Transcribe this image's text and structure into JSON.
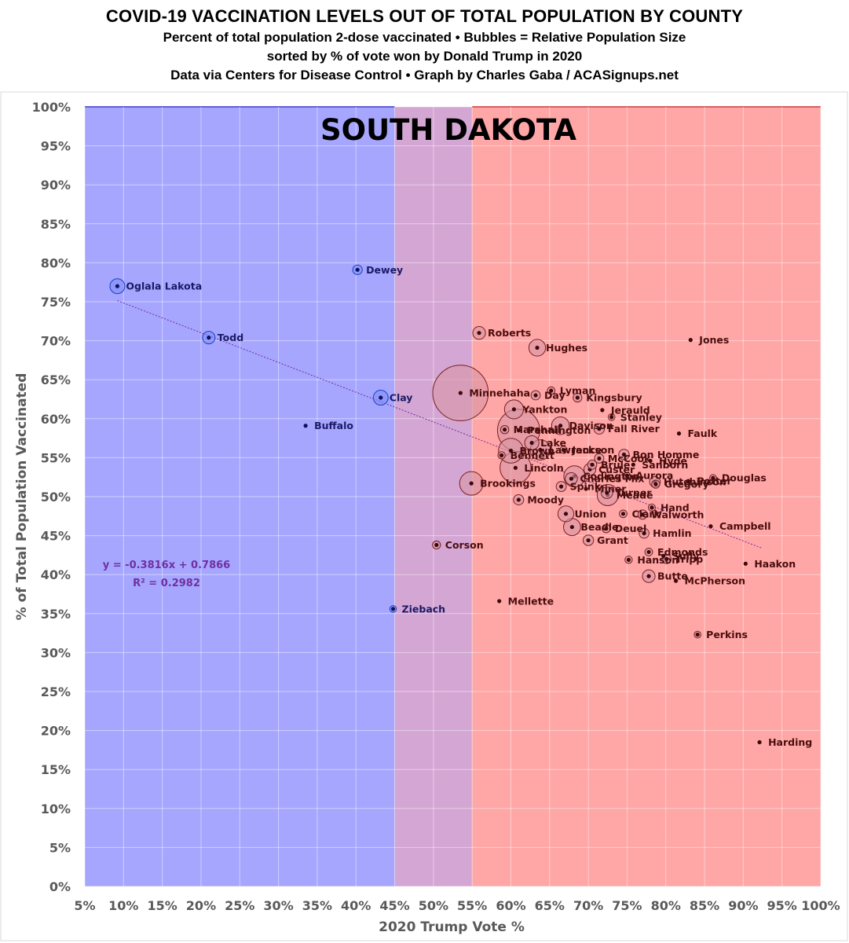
{
  "header": {
    "title": "COVID-19 VACCINATION LEVELS OUT OF TOTAL POPULATION BY COUNTY",
    "subtitle_1": "Percent of total population 2-dose vaccinated • Bubbles = Relative Population Size",
    "subtitle_2": "sorted by % of vote won by Donald Trump in 2020",
    "subtitle_3": "Data via Centers for Disease Control • Graph by Charles Gaba / ACASignups.net"
  },
  "chart_data": {
    "type": "scatter",
    "title": "SOUTH DAKOTA",
    "xlabel": "2020 Trump Vote %",
    "ylabel": "% of Total Population Vaccinated",
    "xlim": [
      5,
      100
    ],
    "ylim": [
      0,
      100
    ],
    "x_ticks": [
      "5%",
      "10%",
      "15%",
      "20%",
      "25%",
      "30%",
      "35%",
      "40%",
      "45%",
      "50%",
      "55%",
      "60%",
      "65%",
      "70%",
      "75%",
      "80%",
      "85%",
      "90%",
      "95%",
      "100%"
    ],
    "y_ticks": [
      "0%",
      "5%",
      "10%",
      "15%",
      "20%",
      "25%",
      "30%",
      "35%",
      "40%",
      "45%",
      "50%",
      "55%",
      "60%",
      "65%",
      "70%",
      "75%",
      "80%",
      "85%",
      "90%",
      "95%",
      "100%"
    ],
    "grid": true,
    "background_bands": [
      {
        "from": 5,
        "to": 45,
        "color": "#a6a6ff"
      },
      {
        "from": 45,
        "to": 55,
        "color": "#d4a6d4"
      },
      {
        "from": 55,
        "to": 100,
        "color": "#ffa6a6"
      }
    ],
    "trendline": {
      "equation": "y = -0.3816x + 0.7866",
      "r_squared": "R² = 0.2982",
      "slope": -0.3816,
      "intercept": 0.7866,
      "x_range": [
        9.2,
        92.3
      ],
      "color": "#7030a0"
    },
    "points": [
      {
        "name": "Oglala Lakota",
        "x": 9.2,
        "y": 77.0,
        "size": 14000
      },
      {
        "name": "Dewey",
        "x": 40.2,
        "y": 79.1,
        "size": 5800
      },
      {
        "name": "Todd",
        "x": 21.0,
        "y": 70.4,
        "size": 9900
      },
      {
        "name": "Clay",
        "x": 43.2,
        "y": 62.7,
        "size": 14000
      },
      {
        "name": "Buffalo",
        "x": 33.5,
        "y": 59.1,
        "size": 1900
      },
      {
        "name": "Corson",
        "x": 50.4,
        "y": 43.8,
        "size": 4100
      },
      {
        "name": "Ziebach",
        "x": 44.8,
        "y": 35.6,
        "size": 2800
      },
      {
        "name": "Minnehaha",
        "x": 53.5,
        "y": 63.3,
        "size": 195000
      },
      {
        "name": "Roberts",
        "x": 55.9,
        "y": 71.0,
        "size": 10300
      },
      {
        "name": "Hughes",
        "x": 63.4,
        "y": 69.1,
        "size": 17700
      },
      {
        "name": "Jones",
        "x": 83.2,
        "y": 70.1,
        "size": 900
      },
      {
        "name": "Lyman",
        "x": 65.2,
        "y": 63.6,
        "size": 3700
      },
      {
        "name": "Day",
        "x": 63.2,
        "y": 63.0,
        "size": 5400
      },
      {
        "name": "Kingsbury",
        "x": 68.6,
        "y": 62.7,
        "size": 4900
      },
      {
        "name": "Yankton",
        "x": 60.4,
        "y": 61.2,
        "size": 22800
      },
      {
        "name": "Jerauld",
        "x": 71.8,
        "y": 61.1,
        "size": 1900
      },
      {
        "name": "Stanley",
        "x": 73.0,
        "y": 60.2,
        "size": 2900
      },
      {
        "name": "Marshall",
        "x": 59.2,
        "y": 58.6,
        "size": 4300
      },
      {
        "name": "Pennington",
        "x": 61.0,
        "y": 58.5,
        "size": 113000
      },
      {
        "name": "Davison",
        "x": 66.4,
        "y": 59.1,
        "size": 19800
      },
      {
        "name": "Fall River",
        "x": 71.4,
        "y": 58.7,
        "size": 7000
      },
      {
        "name": "Faulk",
        "x": 81.7,
        "y": 58.1,
        "size": 2300
      },
      {
        "name": "Lake",
        "x": 62.7,
        "y": 56.9,
        "size": 12800
      },
      {
        "name": "Lawrence",
        "x": 63.8,
        "y": 56.0,
        "size": 26000
      },
      {
        "name": "Jackson",
        "x": 66.8,
        "y": 56.0,
        "size": 3300
      },
      {
        "name": "Brown",
        "x": 60.0,
        "y": 55.9,
        "size": 38800
      },
      {
        "name": "Bennett",
        "x": 58.8,
        "y": 55.3,
        "size": 3400
      },
      {
        "name": "Bon Homme",
        "x": 74.6,
        "y": 55.4,
        "size": 7000
      },
      {
        "name": "McCook",
        "x": 71.4,
        "y": 54.9,
        "size": 5600
      },
      {
        "name": "Hyde",
        "x": 78.0,
        "y": 54.6,
        "size": 1300
      },
      {
        "name": "Sanborn",
        "x": 75.8,
        "y": 54.1,
        "size": 2300
      },
      {
        "name": "Brule",
        "x": 70.5,
        "y": 54.1,
        "size": 5300
      },
      {
        "name": "Custer",
        "x": 70.2,
        "y": 53.5,
        "size": 9000
      },
      {
        "name": "Lincoln",
        "x": 60.6,
        "y": 53.7,
        "size": 61000
      },
      {
        "name": "Codington",
        "x": 68.2,
        "y": 52.6,
        "size": 28300
      },
      {
        "name": "Aurora",
        "x": 75.0,
        "y": 52.7,
        "size": 2700
      },
      {
        "name": "Charles Mix",
        "x": 67.8,
        "y": 52.3,
        "size": 9300
      },
      {
        "name": "Hutchinson",
        "x": 78.6,
        "y": 51.9,
        "size": 7300
      },
      {
        "name": "Potter",
        "x": 82.9,
        "y": 52.0,
        "size": 2200
      },
      {
        "name": "Douglas",
        "x": 86.1,
        "y": 52.4,
        "size": 2900
      },
      {
        "name": "Gregory",
        "x": 78.7,
        "y": 51.6,
        "size": 4200
      },
      {
        "name": "Brookings",
        "x": 54.9,
        "y": 51.7,
        "size": 35000
      },
      {
        "name": "Spink",
        "x": 66.5,
        "y": 51.3,
        "size": 6400
      },
      {
        "name": "Miner",
        "x": 69.7,
        "y": 51.0,
        "size": 2200
      },
      {
        "name": "Turner",
        "x": 72.4,
        "y": 50.5,
        "size": 8400
      },
      {
        "name": "Meade",
        "x": 72.5,
        "y": 50.2,
        "size": 28300
      },
      {
        "name": "Moody",
        "x": 61.0,
        "y": 49.6,
        "size": 6600
      },
      {
        "name": "Hand",
        "x": 78.2,
        "y": 48.6,
        "size": 3200
      },
      {
        "name": "Clark",
        "x": 74.5,
        "y": 47.8,
        "size": 3700
      },
      {
        "name": "Walworth",
        "x": 77.0,
        "y": 47.7,
        "size": 5400
      },
      {
        "name": "Union",
        "x": 67.1,
        "y": 47.8,
        "size": 15900
      },
      {
        "name": "Campbell",
        "x": 85.8,
        "y": 46.2,
        "size": 1400
      },
      {
        "name": "Beadle",
        "x": 67.9,
        "y": 46.1,
        "size": 18500
      },
      {
        "name": "Deuel",
        "x": 72.3,
        "y": 45.9,
        "size": 4300
      },
      {
        "name": "Hamlin",
        "x": 77.2,
        "y": 45.3,
        "size": 6200
      },
      {
        "name": "Grant",
        "x": 70.0,
        "y": 44.4,
        "size": 7000
      },
      {
        "name": "Edmonds",
        "x": 77.8,
        "y": 42.9,
        "size": 3800
      },
      {
        "name": "Sully",
        "x": 79.7,
        "y": 42.4,
        "size": 1400
      },
      {
        "name": "Tripp",
        "x": 80.1,
        "y": 42.0,
        "size": 5400
      },
      {
        "name": "Hanson",
        "x": 75.2,
        "y": 41.9,
        "size": 3400
      },
      {
        "name": "Haakon",
        "x": 90.3,
        "y": 41.4,
        "size": 1900
      },
      {
        "name": "Butte",
        "x": 77.8,
        "y": 39.8,
        "size": 10200
      },
      {
        "name": "McPherson",
        "x": 81.3,
        "y": 39.2,
        "size": 2400
      },
      {
        "name": "Mellette",
        "x": 58.5,
        "y": 36.6,
        "size": 2100
      },
      {
        "name": "Perkins",
        "x": 84.1,
        "y": 32.3,
        "size": 2900
      },
      {
        "name": "Harding",
        "x": 92.1,
        "y": 18.5,
        "size": 1300
      }
    ]
  }
}
